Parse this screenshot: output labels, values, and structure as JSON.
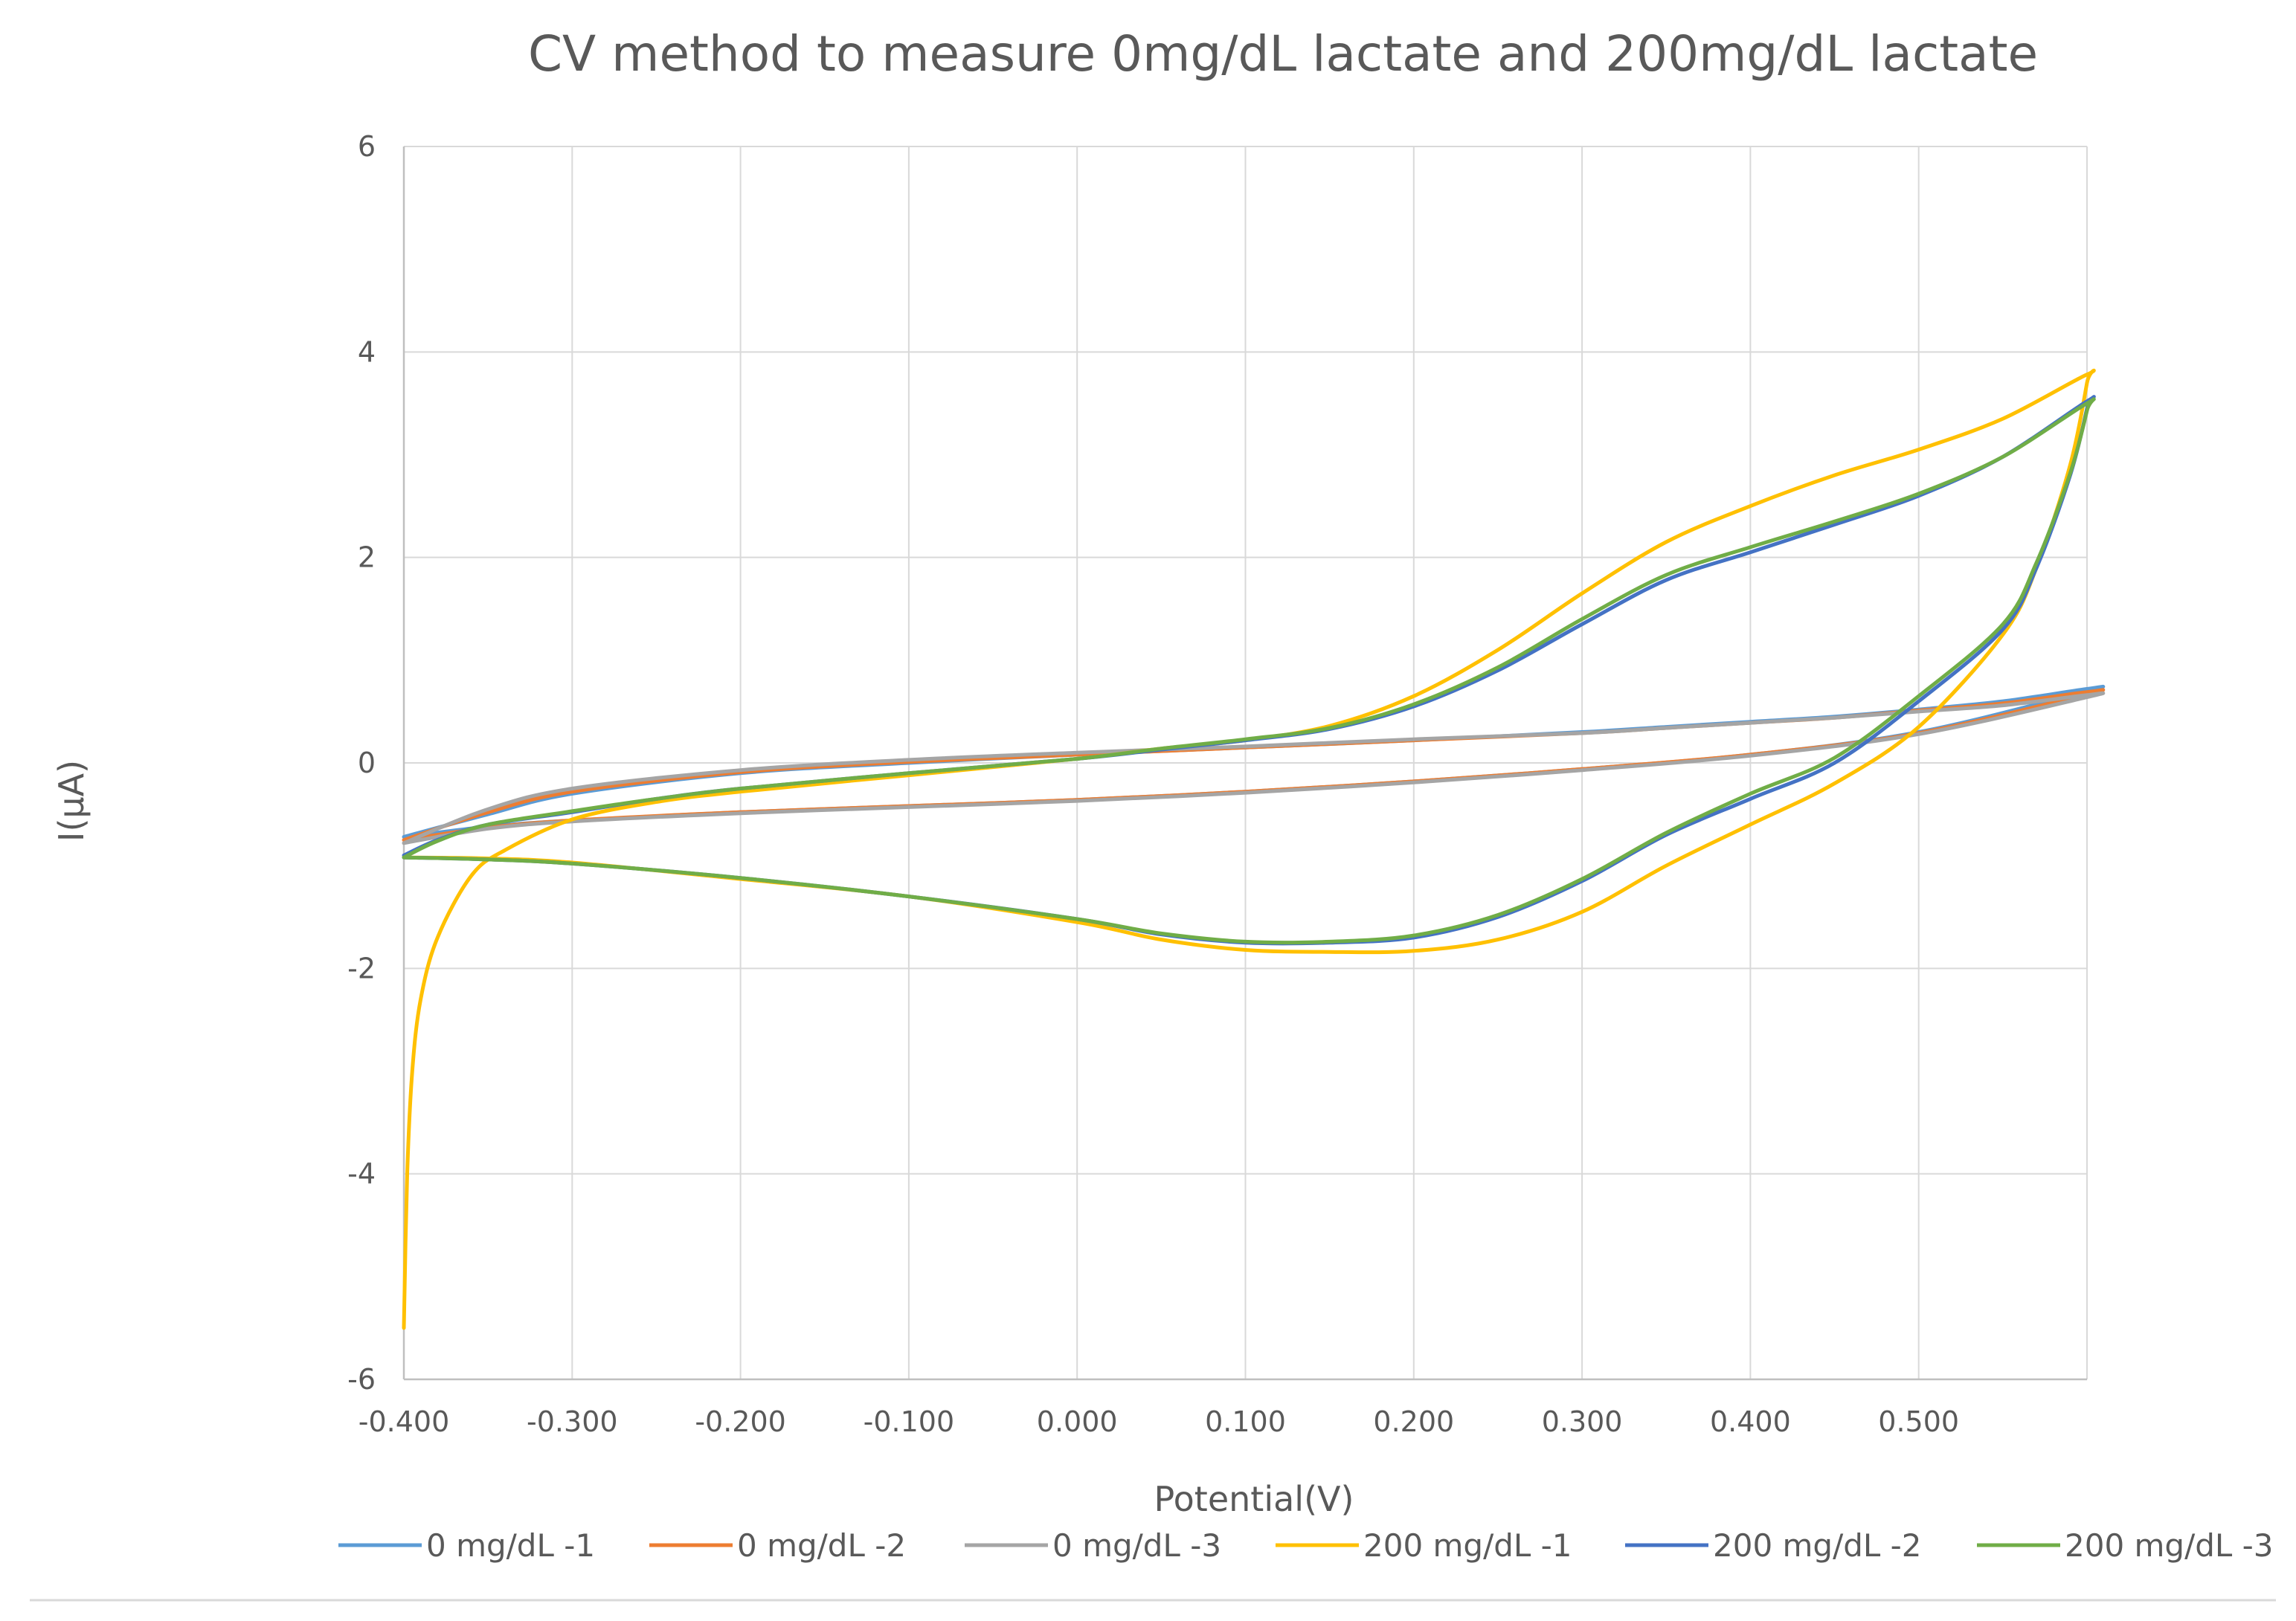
{
  "chart_data": {
    "type": "line",
    "title": "CV method to measure 0mg/dL lactate and 200mg/dL lactate",
    "xlabel": "Potential(V)",
    "ylabel": "I(µA)",
    "xlim": [
      -0.4,
      0.6
    ],
    "ylim": [
      -6,
      6
    ],
    "x_ticks": [
      "-0.400",
      "-0.300",
      "-0.200",
      "-0.100",
      "0.000",
      "0.100",
      "0.200",
      "0.300",
      "0.400",
      "0.500"
    ],
    "x_tick_values": [
      -0.4,
      -0.3,
      -0.2,
      -0.1,
      0.0,
      0.1,
      0.2,
      0.3,
      0.4,
      0.5
    ],
    "y_ticks": [
      "6",
      "4",
      "2",
      "0",
      "-2",
      "-4",
      "-6"
    ],
    "y_tick_values": [
      6,
      4,
      2,
      0,
      -2,
      -4,
      -6
    ],
    "grid": true,
    "legend_position": "bottom",
    "series": [
      {
        "name": "0 mg/dL -1",
        "color": "#5b9bd5",
        "x": [
          -0.4,
          -0.35,
          -0.3,
          -0.2,
          -0.1,
          0.0,
          0.1,
          0.2,
          0.3,
          0.4,
          0.5,
          0.6,
          0.6,
          0.55,
          0.5,
          0.45,
          0.4,
          0.35,
          0.3,
          0.2,
          0.1,
          0.0,
          -0.1,
          -0.2,
          -0.3,
          -0.35,
          -0.4
        ],
        "y": [
          -0.72,
          -0.62,
          -0.56,
          -0.48,
          -0.42,
          -0.36,
          -0.28,
          -0.18,
          -0.06,
          0.08,
          0.3,
          0.7,
          0.72,
          0.6,
          0.52,
          0.45,
          0.4,
          0.35,
          0.3,
          0.22,
          0.15,
          0.08,
          0.0,
          -0.1,
          -0.3,
          -0.5,
          -0.72
        ]
      },
      {
        "name": "0 mg/dL -2",
        "color": "#ed7d31",
        "x": [
          -0.4,
          -0.35,
          -0.3,
          -0.2,
          -0.1,
          0.0,
          0.1,
          0.2,
          0.3,
          0.4,
          0.5,
          0.6,
          0.6,
          0.55,
          0.5,
          0.45,
          0.4,
          0.35,
          0.3,
          0.2,
          0.1,
          0.0,
          -0.1,
          -0.2,
          -0.3,
          -0.35,
          -0.4
        ],
        "y": [
          -0.75,
          -0.63,
          -0.56,
          -0.48,
          -0.42,
          -0.36,
          -0.28,
          -0.18,
          -0.06,
          0.08,
          0.29,
          0.67,
          0.69,
          0.58,
          0.51,
          0.44,
          0.39,
          0.34,
          0.29,
          0.22,
          0.15,
          0.08,
          0.01,
          -0.09,
          -0.28,
          -0.48,
          -0.75
        ]
      },
      {
        "name": "0 mg/dL -3",
        "color": "#a5a5a5",
        "x": [
          -0.4,
          -0.35,
          -0.3,
          -0.2,
          -0.1,
          0.0,
          0.1,
          0.2,
          0.3,
          0.4,
          0.5,
          0.6,
          0.6,
          0.55,
          0.5,
          0.45,
          0.4,
          0.35,
          0.3,
          0.2,
          0.1,
          0.0,
          -0.1,
          -0.2,
          -0.3,
          -0.35,
          -0.4
        ],
        "y": [
          -0.78,
          -0.64,
          -0.57,
          -0.49,
          -0.43,
          -0.37,
          -0.29,
          -0.19,
          -0.07,
          0.07,
          0.28,
          0.64,
          0.66,
          0.56,
          0.5,
          0.44,
          0.39,
          0.34,
          0.29,
          0.23,
          0.16,
          0.1,
          0.03,
          -0.07,
          -0.25,
          -0.45,
          -0.78
        ]
      },
      {
        "name": "200 mg/dL -1",
        "color": "#ffc000",
        "x": [
          -0.4,
          -0.398,
          -0.395,
          -0.39,
          -0.38,
          -0.36,
          -0.34,
          -0.3,
          -0.25,
          -0.2,
          -0.1,
          0.0,
          0.05,
          0.1,
          0.15,
          0.2,
          0.25,
          0.3,
          0.35,
          0.4,
          0.45,
          0.5,
          0.55,
          0.6,
          0.6,
          0.59,
          0.57,
          0.55,
          0.5,
          0.45,
          0.4,
          0.35,
          0.3,
          0.25,
          0.2,
          0.15,
          0.1,
          0.05,
          0.0,
          -0.1,
          -0.2,
          -0.3,
          -0.35,
          -0.4
        ],
        "y": [
          -5.5,
          -4.0,
          -3.0,
          -2.3,
          -1.7,
          -1.1,
          -0.85,
          -0.55,
          -0.38,
          -0.28,
          -0.12,
          0.04,
          0.14,
          0.22,
          0.36,
          0.65,
          1.1,
          1.65,
          2.15,
          2.5,
          2.8,
          3.05,
          3.35,
          3.78,
          3.7,
          2.9,
          1.9,
          1.25,
          0.35,
          -0.2,
          -0.6,
          -1.0,
          -1.45,
          -1.72,
          -1.83,
          -1.84,
          -1.82,
          -1.72,
          -1.55,
          -1.3,
          -1.13,
          -0.97,
          -0.93,
          -0.92
        ]
      },
      {
        "name": "200 mg/dL -2",
        "color": "#4472c4",
        "x": [
          -0.4,
          -0.38,
          -0.35,
          -0.3,
          -0.25,
          -0.2,
          -0.1,
          0.0,
          0.05,
          0.1,
          0.15,
          0.2,
          0.25,
          0.3,
          0.35,
          0.4,
          0.45,
          0.5,
          0.55,
          0.6,
          0.6,
          0.59,
          0.57,
          0.55,
          0.5,
          0.45,
          0.4,
          0.35,
          0.3,
          0.25,
          0.2,
          0.15,
          0.1,
          0.05,
          0.0,
          -0.1,
          -0.2,
          -0.3,
          -0.35,
          -0.4
        ],
        "y": [
          -0.9,
          -0.75,
          -0.6,
          -0.48,
          -0.35,
          -0.25,
          -0.1,
          0.04,
          0.13,
          0.22,
          0.33,
          0.55,
          0.9,
          1.35,
          1.78,
          2.05,
          2.32,
          2.6,
          2.98,
          3.52,
          3.45,
          2.8,
          1.9,
          1.3,
          0.6,
          0.0,
          -0.35,
          -0.7,
          -1.15,
          -1.5,
          -1.7,
          -1.75,
          -1.75,
          -1.67,
          -1.52,
          -1.3,
          -1.12,
          -0.98,
          -0.94,
          -0.92
        ]
      },
      {
        "name": "200 mg/dL -3",
        "color": "#70ad47",
        "x": [
          -0.4,
          -0.38,
          -0.35,
          -0.3,
          -0.25,
          -0.2,
          -0.1,
          0.0,
          0.05,
          0.1,
          0.15,
          0.2,
          0.25,
          0.3,
          0.35,
          0.4,
          0.45,
          0.5,
          0.55,
          0.6,
          0.6,
          0.59,
          0.57,
          0.55,
          0.5,
          0.45,
          0.4,
          0.35,
          0.3,
          0.25,
          0.2,
          0.15,
          0.1,
          0.05,
          0.0,
          -0.1,
          -0.2,
          -0.3,
          -0.35,
          -0.4
        ],
        "y": [
          -0.92,
          -0.76,
          -0.6,
          -0.47,
          -0.35,
          -0.25,
          -0.1,
          0.04,
          0.14,
          0.23,
          0.34,
          0.57,
          0.93,
          1.4,
          1.83,
          2.1,
          2.35,
          2.62,
          2.98,
          3.5,
          3.43,
          2.82,
          1.95,
          1.35,
          0.65,
          0.05,
          -0.3,
          -0.68,
          -1.13,
          -1.48,
          -1.68,
          -1.74,
          -1.74,
          -1.66,
          -1.52,
          -1.3,
          -1.12,
          -0.98,
          -0.94,
          -0.92
        ]
      }
    ]
  }
}
